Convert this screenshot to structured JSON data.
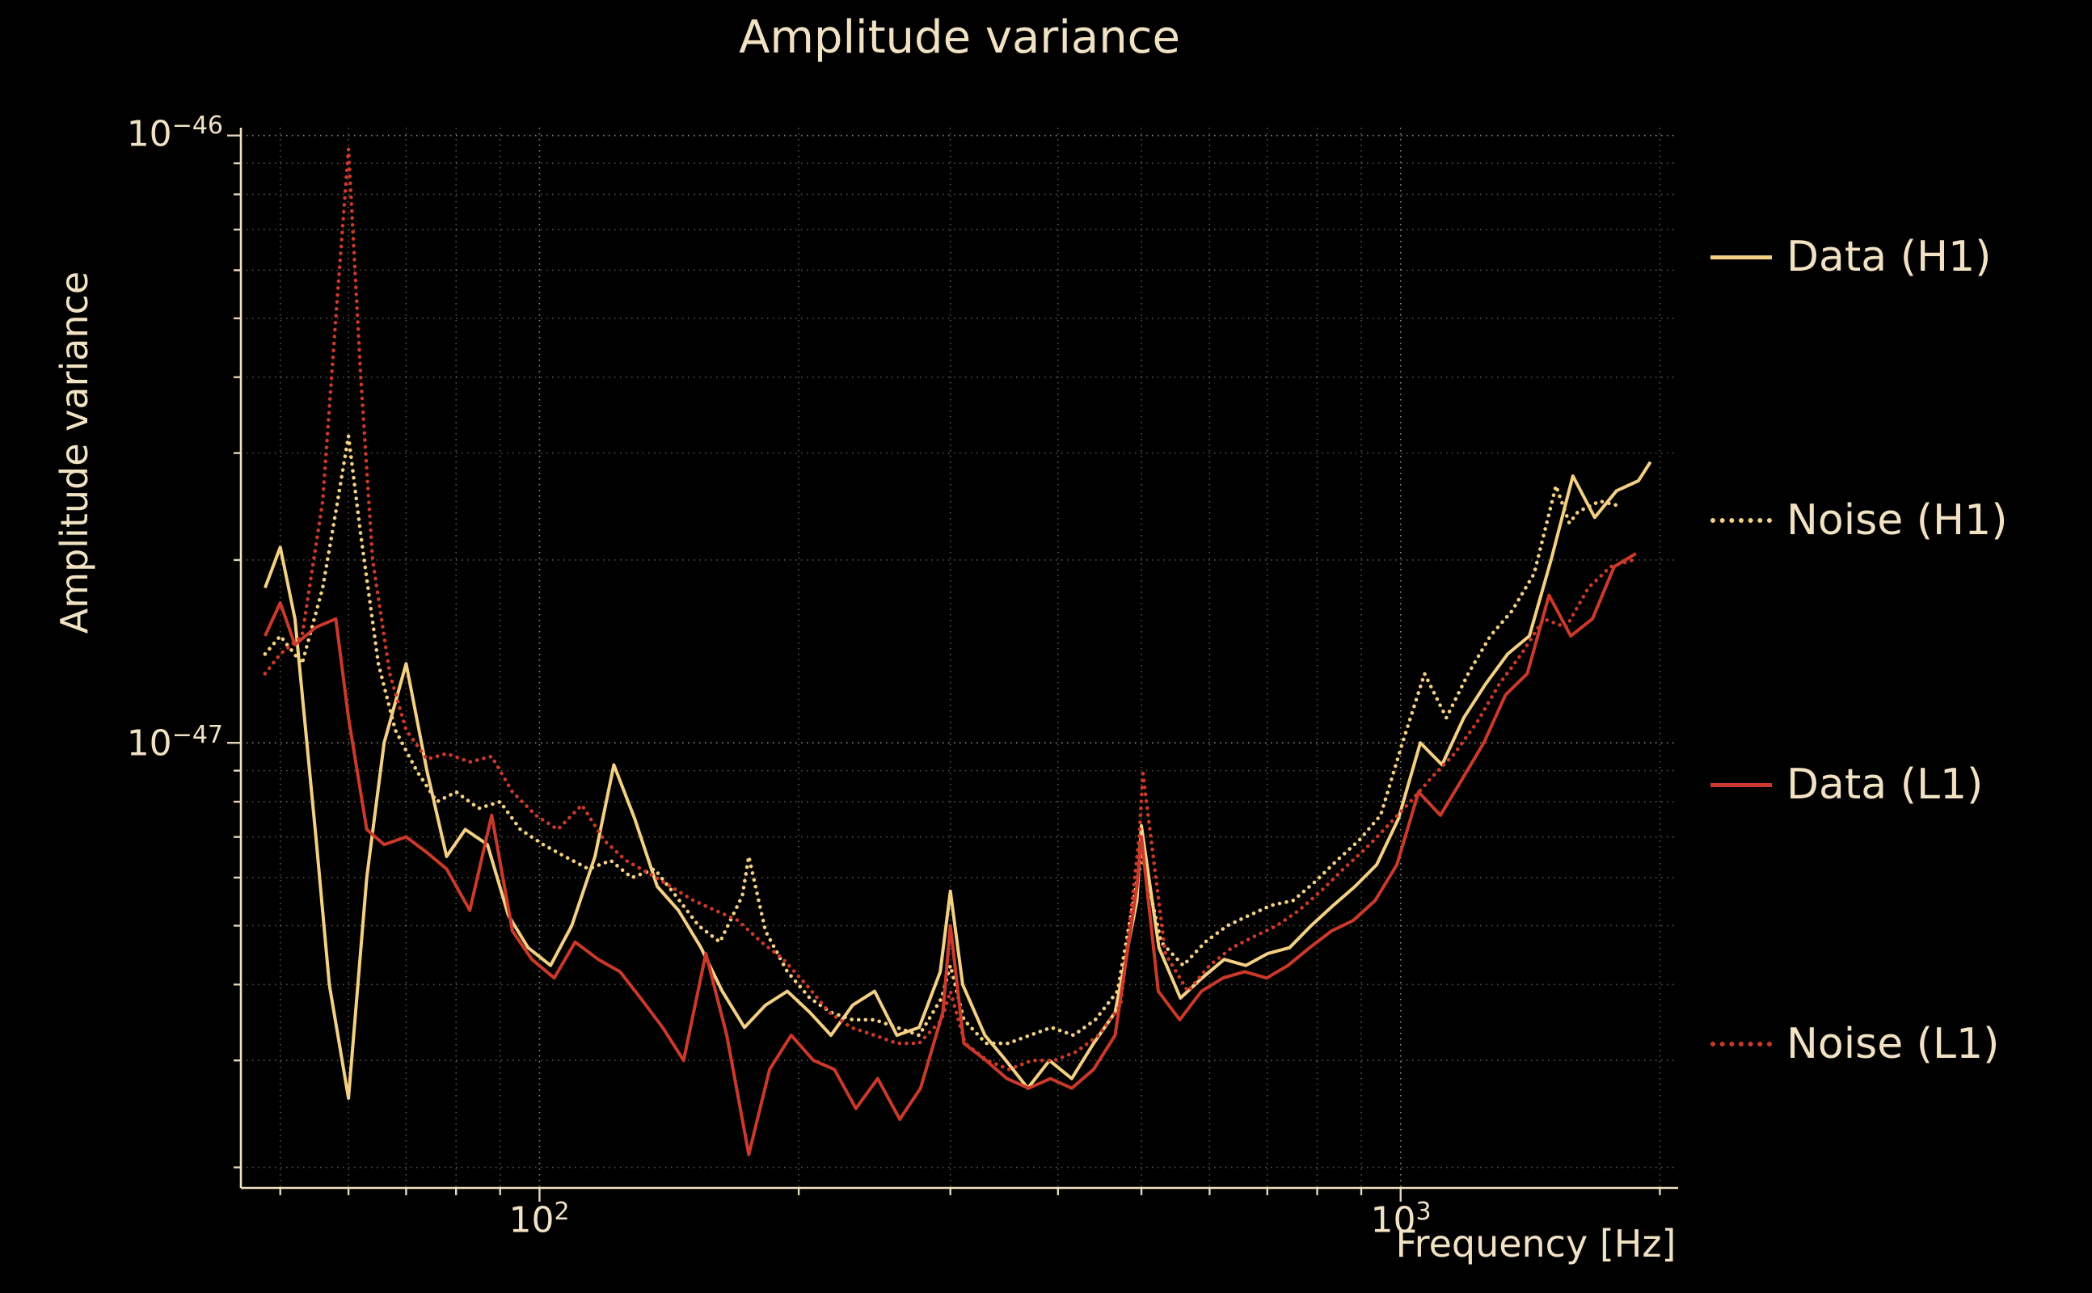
{
  "figure": {
    "title": "Amplitude variance",
    "xlabel": "Frequency [Hz]",
    "ylabel": "Amplitude variance",
    "xticks": [
      {
        "mant": "10",
        "exp": "2"
      },
      {
        "mant": "10",
        "exp": "3"
      }
    ],
    "yticks": [
      {
        "mant": "10",
        "exp": "−46"
      },
      {
        "mant": "10",
        "exp": "−47"
      }
    ]
  },
  "colors": {
    "background": "#000000",
    "text": "#f2e2c4",
    "grid": "#f2e2c4",
    "h1": "#f3d084",
    "l1": "#cb392a"
  },
  "legend": {
    "position": "right-outside",
    "entries": [
      {
        "label": "Data (H1)",
        "style": "solid",
        "color": "#f3d084"
      },
      {
        "label": "Noise (H1)",
        "style": "dotted",
        "color": "#f3d084"
      },
      {
        "label": "Data (L1)",
        "style": "solid",
        "color": "#cb392a"
      },
      {
        "label": "Noise (L1)",
        "style": "dotted",
        "color": "#cb392a"
      }
    ]
  },
  "chart_data": {
    "type": "line",
    "title": "Amplitude variance",
    "xlabel": "Frequency [Hz]",
    "ylabel": "Amplitude variance",
    "xscale": "log",
    "yscale": "log",
    "xlim": [
      45,
      2100
    ],
    "ylim": [
      1.85e-48,
      1.03e-46
    ],
    "grid": true,
    "legend_position": "right-outside",
    "axes": {
      "xgrid_major": [
        100,
        1000
      ],
      "xgrid_minor": [
        50,
        60,
        70,
        80,
        90,
        200,
        300,
        400,
        500,
        600,
        700,
        800,
        900,
        2000
      ],
      "ygrid_major": [
        1e-47,
        1e-46
      ],
      "ygrid_minor": [
        2e-48,
        3e-48,
        4e-48,
        5e-48,
        6e-48,
        7e-48,
        8e-48,
        9e-48,
        2e-47,
        3e-47,
        4e-47,
        5e-47,
        6e-47,
        7e-47,
        8e-47,
        9e-47
      ]
    },
    "series": [
      {
        "name": "Data (H1)",
        "color": "#f3d084",
        "style": "solid",
        "x": [
          48,
          50,
          52,
          55,
          57,
          60,
          63,
          66,
          70,
          74,
          78,
          82,
          87,
          92,
          97,
          103,
          109,
          116,
          122,
          129,
          137,
          145,
          154,
          163,
          173,
          183,
          194,
          206,
          218,
          231,
          245,
          260,
          276,
          292,
          300,
          310,
          329,
          348,
          369,
          391,
          415,
          440,
          466,
          494,
          500,
          524,
          555,
          588,
          624,
          661,
          701,
          743,
          787,
          835,
          885,
          938,
          994,
          1054,
          1117,
          1184,
          1255,
          1331,
          1411,
          1495,
          1585,
          1680,
          1781,
          1888,
          1950
        ],
        "y": [
          1.8e-47,
          2.1e-47,
          1.6e-47,
          7e-48,
          4e-48,
          2.6e-48,
          6e-48,
          1e-47,
          1.35e-47,
          9e-48,
          6.5e-48,
          7.2e-48,
          6.8e-48,
          5.2e-48,
          4.6e-48,
          4.3e-48,
          5e-48,
          6.5e-48,
          9.2e-48,
          7.5e-48,
          5.8e-48,
          5.3e-48,
          4.6e-48,
          3.9e-48,
          3.4e-48,
          3.7e-48,
          3.9e-48,
          3.6e-48,
          3.3e-48,
          3.7e-48,
          3.9e-48,
          3.3e-48,
          3.4e-48,
          4.2e-48,
          5.7e-48,
          4e-48,
          3.3e-48,
          3e-48,
          2.7e-48,
          3e-48,
          2.8e-48,
          3.2e-48,
          3.6e-48,
          5.5e-48,
          7.3e-48,
          4.6e-48,
          3.8e-48,
          4.1e-48,
          4.4e-48,
          4.3e-48,
          4.5e-48,
          4.6e-48,
          5e-48,
          5.4e-48,
          5.8e-48,
          6.3e-48,
          7.5e-48,
          1e-47,
          9.2e-48,
          1.1e-47,
          1.25e-47,
          1.4e-47,
          1.5e-47,
          2e-47,
          2.75e-47,
          2.35e-47,
          2.6e-47,
          2.7e-47,
          2.9e-47
        ]
      },
      {
        "name": "Noise (H1)",
        "color": "#f3d084",
        "style": "dotted",
        "x": [
          48,
          50,
          53,
          56,
          58,
          60,
          62,
          65,
          68,
          72,
          76,
          80,
          85,
          90,
          95,
          101,
          107,
          114,
          121,
          128,
          136,
          144,
          153,
          162,
          172,
          175,
          183,
          194,
          206,
          218,
          231,
          245,
          260,
          276,
          293,
          300,
          311,
          330,
          350,
          371,
          393,
          417,
          442,
          469,
          497,
          500,
          527,
          559,
          593,
          629,
          667,
          707,
          750,
          795,
          843,
          894,
          948,
          1005,
          1066,
          1130,
          1198,
          1271,
          1347,
          1429,
          1515,
          1570,
          1606,
          1703,
          1806
        ],
        "y": [
          1.4e-47,
          1.5e-47,
          1.35e-47,
          1.8e-47,
          2.4e-47,
          3.2e-47,
          2.2e-47,
          1.35e-47,
          1.05e-47,
          9e-48,
          8e-48,
          8.3e-48,
          7.8e-48,
          8e-48,
          7.2e-48,
          6.8e-48,
          6.5e-48,
          6.2e-48,
          6.4e-48,
          6e-48,
          6.2e-48,
          5.6e-48,
          5e-48,
          4.7e-48,
          5.6e-48,
          6.5e-48,
          4.9e-48,
          4.2e-48,
          3.8e-48,
          3.6e-48,
          3.5e-48,
          3.5e-48,
          3.4e-48,
          3.3e-48,
          3.8e-48,
          4.3e-48,
          3.5e-48,
          3.2e-48,
          3.2e-48,
          3.3e-48,
          3.4e-48,
          3.3e-48,
          3.5e-48,
          3.9e-48,
          6.2e-48,
          6.6e-48,
          4.7e-48,
          4.3e-48,
          4.7e-48,
          5e-48,
          5.2e-48,
          5.4e-48,
          5.5e-48,
          5.9e-48,
          6.4e-48,
          6.9e-48,
          7.6e-48,
          1e-47,
          1.3e-47,
          1.1e-47,
          1.3e-47,
          1.5e-47,
          1.65e-47,
          1.9e-47,
          2.65e-47,
          2.3e-47,
          2.4e-47,
          2.5e-47,
          2.45e-47
        ]
      },
      {
        "name": "Data (L1)",
        "color": "#cb392a",
        "style": "solid",
        "x": [
          48,
          50,
          52,
          55,
          58,
          60,
          63,
          66,
          70,
          74,
          78,
          83,
          88,
          93,
          98,
          104,
          110,
          117,
          124,
          131,
          139,
          147,
          156,
          165,
          175,
          185,
          196,
          208,
          220,
          233,
          247,
          262,
          277,
          294,
          300,
          311,
          330,
          349,
          370,
          392,
          415,
          440,
          466,
          494,
          500,
          523,
          554,
          587,
          622,
          659,
          699,
          740,
          784,
          831,
          881,
          934,
          990,
          1049,
          1112,
          1178,
          1249,
          1324,
          1403,
          1487,
          1576,
          1670,
          1770,
          1876
        ],
        "y": [
          1.5e-47,
          1.7e-47,
          1.45e-47,
          1.55e-47,
          1.6e-47,
          1.1e-47,
          7.2e-48,
          6.8e-48,
          7e-48,
          6.6e-48,
          6.2e-48,
          5.3e-48,
          7.6e-48,
          4.9e-48,
          4.4e-48,
          4.1e-48,
          4.7e-48,
          4.4e-48,
          4.2e-48,
          3.8e-48,
          3.4e-48,
          3e-48,
          4.5e-48,
          3.3e-48,
          2.1e-48,
          2.9e-48,
          3.3e-48,
          3e-48,
          2.9e-48,
          2.5e-48,
          2.8e-48,
          2.4e-48,
          2.7e-48,
          3.6e-48,
          5e-48,
          3.2e-48,
          3e-48,
          2.8e-48,
          2.7e-48,
          2.8e-48,
          2.7e-48,
          2.9e-48,
          3.3e-48,
          5.8e-48,
          7e-48,
          3.9e-48,
          3.5e-48,
          3.9e-48,
          4.1e-48,
          4.2e-48,
          4.1e-48,
          4.3e-48,
          4.6e-48,
          4.9e-48,
          5.1e-48,
          5.5e-48,
          6.3e-48,
          8.3e-48,
          7.6e-48,
          8.7e-48,
          1e-47,
          1.2e-47,
          1.3e-47,
          1.75e-47,
          1.5e-47,
          1.6e-47,
          1.95e-47,
          2.05e-47
        ]
      },
      {
        "name": "Noise (L1)",
        "color": "#cb392a",
        "style": "dotted",
        "x": [
          48,
          50,
          53,
          56,
          58,
          60,
          62,
          64,
          67,
          70,
          74,
          78,
          83,
          88,
          93,
          99,
          105,
          112,
          119,
          126,
          134,
          142,
          151,
          160,
          170,
          181,
          192,
          204,
          217,
          230,
          245,
          260,
          276,
          293,
          300,
          312,
          331,
          351,
          373,
          396,
          420,
          446,
          473,
          497,
          502,
          533,
          566,
          600,
          637,
          676,
          718,
          762,
          808,
          858,
          911,
          966,
          1026,
          1089,
          1155,
          1226,
          1302,
          1381,
          1466,
          1556,
          1652,
          1753,
          1860
        ],
        "y": [
          1.3e-47,
          1.4e-47,
          1.5e-47,
          2.5e-47,
          5e-47,
          9.5e-47,
          4e-47,
          2e-47,
          1.3e-47,
          1.05e-47,
          9.4e-48,
          9.6e-48,
          9.3e-48,
          9.5e-48,
          8.3e-48,
          7.6e-48,
          7.2e-48,
          7.9e-48,
          6.9e-48,
          6.4e-48,
          6.1e-48,
          5.8e-48,
          5.5e-48,
          5.3e-48,
          5.1e-48,
          4.7e-48,
          4.4e-48,
          4e-48,
          3.6e-48,
          3.4e-48,
          3.3e-48,
          3.2e-48,
          3.2e-48,
          3.5e-48,
          3.9e-48,
          3.2e-48,
          3e-48,
          2.9e-48,
          3e-48,
          3e-48,
          3.1e-48,
          3.3e-48,
          3.7e-48,
          7e-48,
          8.9e-48,
          4.5e-48,
          3.9e-48,
          4.3e-48,
          4.6e-48,
          4.8e-48,
          5e-48,
          5.3e-48,
          5.7e-48,
          6.2e-48,
          6.7e-48,
          7.3e-48,
          8e-48,
          8.8e-48,
          9.6e-48,
          1.08e-47,
          1.25e-47,
          1.4e-47,
          1.6e-47,
          1.55e-47,
          1.8e-47,
          1.95e-47,
          2e-47
        ]
      }
    ]
  }
}
